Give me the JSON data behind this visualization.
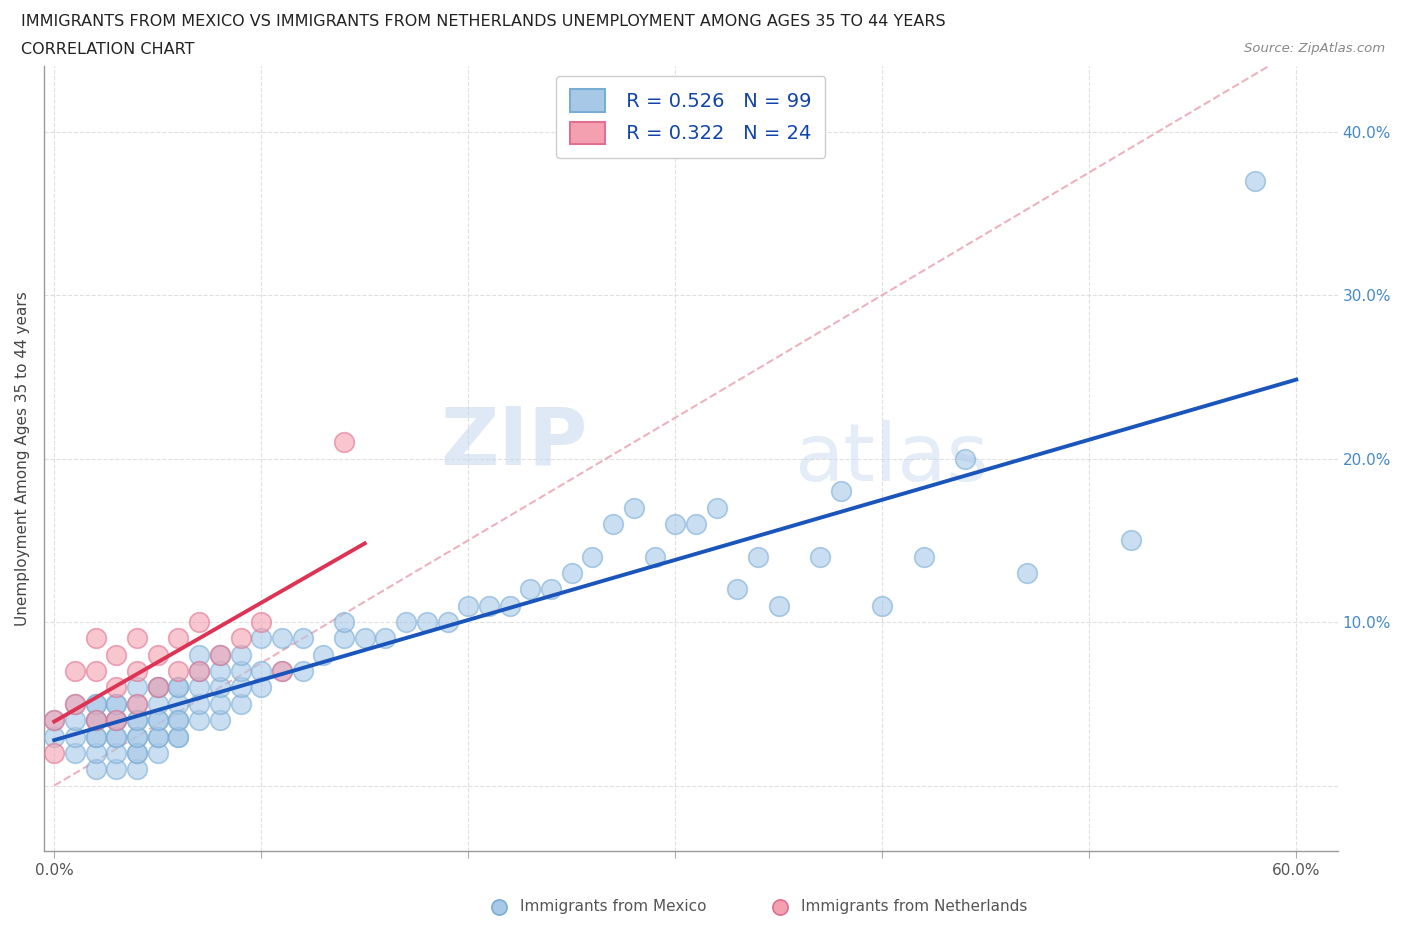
{
  "title_line1": "IMMIGRANTS FROM MEXICO VS IMMIGRANTS FROM NETHERLANDS UNEMPLOYMENT AMONG AGES 35 TO 44 YEARS",
  "title_line2": "CORRELATION CHART",
  "source": "Source: ZipAtlas.com",
  "ylabel": "Unemployment Among Ages 35 to 44 years",
  "xlim": [
    -0.005,
    0.62
  ],
  "ylim": [
    -0.04,
    0.44
  ],
  "xticks": [
    0.0,
    0.1,
    0.2,
    0.3,
    0.4,
    0.5,
    0.6
  ],
  "yticks": [
    0.0,
    0.1,
    0.2,
    0.3,
    0.4
  ],
  "mexico_color": "#a8c8e8",
  "mexico_edge_color": "#7aadd4",
  "netherlands_color": "#f4a0b0",
  "netherlands_edge_color": "#e07090",
  "mexico_line_color": "#1a55bb",
  "netherlands_line_color": "#dd3355",
  "ref_line_color": "#e8a0b0",
  "ref_line_style": "--",
  "legend_R1": "R = 0.526",
  "legend_N1": "N = 99",
  "legend_R2": "R = 0.322",
  "legend_N2": "N = 24",
  "watermark_zip": "ZIP",
  "watermark_atlas": "atlas",
  "mexico_x": [
    0.0,
    0.0,
    0.01,
    0.01,
    0.01,
    0.01,
    0.02,
    0.02,
    0.02,
    0.02,
    0.02,
    0.02,
    0.02,
    0.02,
    0.03,
    0.03,
    0.03,
    0.03,
    0.03,
    0.03,
    0.03,
    0.03,
    0.04,
    0.04,
    0.04,
    0.04,
    0.04,
    0.04,
    0.04,
    0.04,
    0.04,
    0.05,
    0.05,
    0.05,
    0.05,
    0.05,
    0.05,
    0.05,
    0.05,
    0.06,
    0.06,
    0.06,
    0.06,
    0.06,
    0.06,
    0.06,
    0.07,
    0.07,
    0.07,
    0.07,
    0.07,
    0.08,
    0.08,
    0.08,
    0.08,
    0.08,
    0.09,
    0.09,
    0.09,
    0.09,
    0.1,
    0.1,
    0.1,
    0.11,
    0.11,
    0.12,
    0.12,
    0.13,
    0.14,
    0.14,
    0.15,
    0.16,
    0.17,
    0.18,
    0.19,
    0.2,
    0.21,
    0.22,
    0.23,
    0.24,
    0.25,
    0.26,
    0.27,
    0.28,
    0.29,
    0.3,
    0.31,
    0.32,
    0.33,
    0.34,
    0.35,
    0.37,
    0.38,
    0.4,
    0.42,
    0.44,
    0.47,
    0.52,
    0.58
  ],
  "mexico_y": [
    0.03,
    0.04,
    0.02,
    0.03,
    0.04,
    0.05,
    0.01,
    0.02,
    0.03,
    0.04,
    0.05,
    0.03,
    0.04,
    0.05,
    0.01,
    0.02,
    0.03,
    0.04,
    0.05,
    0.03,
    0.04,
    0.05,
    0.01,
    0.02,
    0.03,
    0.04,
    0.05,
    0.02,
    0.03,
    0.04,
    0.06,
    0.02,
    0.03,
    0.04,
    0.05,
    0.06,
    0.03,
    0.04,
    0.06,
    0.03,
    0.04,
    0.05,
    0.06,
    0.03,
    0.04,
    0.06,
    0.04,
    0.05,
    0.06,
    0.07,
    0.08,
    0.04,
    0.05,
    0.06,
    0.07,
    0.08,
    0.05,
    0.06,
    0.07,
    0.08,
    0.06,
    0.07,
    0.09,
    0.07,
    0.09,
    0.07,
    0.09,
    0.08,
    0.09,
    0.1,
    0.09,
    0.09,
    0.1,
    0.1,
    0.1,
    0.11,
    0.11,
    0.11,
    0.12,
    0.12,
    0.13,
    0.14,
    0.16,
    0.17,
    0.14,
    0.16,
    0.16,
    0.17,
    0.12,
    0.14,
    0.11,
    0.14,
    0.18,
    0.11,
    0.14,
    0.2,
    0.13,
    0.15,
    0.37
  ],
  "netherlands_x": [
    0.0,
    0.0,
    0.01,
    0.01,
    0.02,
    0.02,
    0.02,
    0.03,
    0.03,
    0.03,
    0.04,
    0.04,
    0.04,
    0.05,
    0.05,
    0.06,
    0.06,
    0.07,
    0.07,
    0.08,
    0.09,
    0.1,
    0.11,
    0.14
  ],
  "netherlands_y": [
    0.02,
    0.04,
    0.05,
    0.07,
    0.04,
    0.07,
    0.09,
    0.04,
    0.06,
    0.08,
    0.05,
    0.07,
    0.09,
    0.06,
    0.08,
    0.07,
    0.09,
    0.07,
    0.1,
    0.08,
    0.09,
    0.1,
    0.07,
    0.21
  ]
}
